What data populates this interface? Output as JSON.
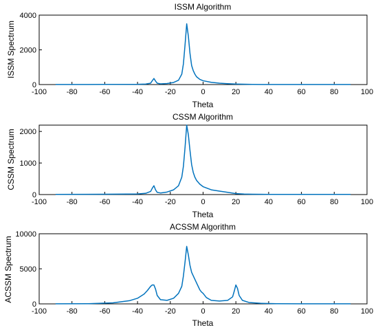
{
  "colors": {
    "series": "#0072BD",
    "axis": "#000000"
  },
  "chart_data": [
    {
      "type": "line",
      "title": "ISSM Algorithm",
      "xlabel": "Theta",
      "ylabel": "ISSM Spectrum",
      "xlim": [
        -100,
        100
      ],
      "ylim": [
        0,
        4000
      ],
      "xticks": [
        -100,
        -80,
        -60,
        -40,
        -20,
        0,
        20,
        40,
        60,
        80,
        100
      ],
      "yticks": [
        0,
        2000,
        4000
      ],
      "grid": false,
      "series": [
        {
          "x": [
            -90,
            -60,
            -40,
            -35,
            -32,
            -31,
            -30,
            -29,
            -28,
            -26,
            -22,
            -18,
            -15,
            -13,
            -12,
            -11,
            -10,
            -9,
            -8,
            -7,
            -6,
            -5,
            -4,
            -2,
            0,
            5,
            10,
            15,
            20,
            25,
            30,
            40,
            60,
            90
          ],
          "y": [
            5,
            8,
            15,
            30,
            80,
            220,
            350,
            200,
            80,
            40,
            60,
            120,
            250,
            600,
            1200,
            2300,
            3500,
            2800,
            1800,
            1100,
            800,
            600,
            450,
            300,
            220,
            130,
            80,
            50,
            30,
            20,
            10,
            5,
            5,
            5
          ]
        }
      ]
    },
    {
      "type": "line",
      "title": "CSSM Algorithm",
      "xlabel": "Theta",
      "ylabel": "CSSM Spectrum",
      "xlim": [
        -100,
        100
      ],
      "ylim": [
        0,
        2200
      ],
      "xticks": [
        -100,
        -80,
        -60,
        -40,
        -20,
        0,
        20,
        40,
        60,
        80,
        100
      ],
      "yticks": [
        0,
        1000,
        2000
      ],
      "grid": false,
      "series": [
        {
          "x": [
            -90,
            -60,
            -40,
            -35,
            -32,
            -31,
            -30,
            -29,
            -28,
            -26,
            -22,
            -18,
            -15,
            -13,
            -12,
            -11,
            -10,
            -9,
            -8,
            -7,
            -6,
            -5,
            -4,
            -2,
            0,
            5,
            10,
            15,
            20,
            25,
            30,
            40,
            60,
            90
          ],
          "y": [
            5,
            10,
            20,
            40,
            100,
            200,
            280,
            150,
            70,
            50,
            80,
            150,
            280,
            550,
            900,
            1500,
            2200,
            1900,
            1400,
            950,
            700,
            550,
            450,
            330,
            250,
            150,
            110,
            70,
            30,
            15,
            10,
            5,
            5,
            5
          ]
        }
      ]
    },
    {
      "type": "line",
      "title": "ACSSM Algorithm",
      "xlabel": "Theta",
      "ylabel": "ACSSM Spectrum",
      "xlim": [
        -100,
        100
      ],
      "ylim": [
        0,
        10000
      ],
      "xticks": [
        -100,
        -80,
        -60,
        -40,
        -20,
        0,
        20,
        40,
        60,
        80,
        100
      ],
      "yticks": [
        0,
        5000,
        10000
      ],
      "grid": false,
      "series": [
        {
          "x": [
            -90,
            -70,
            -55,
            -45,
            -40,
            -36,
            -34,
            -32,
            -31,
            -30,
            -29,
            -28,
            -26,
            -22,
            -18,
            -15,
            -13,
            -12,
            -11,
            -10,
            -9,
            -8,
            -7,
            -6,
            -5,
            -4,
            -3,
            -2,
            -1,
            0,
            2,
            5,
            10,
            15,
            18,
            19,
            20,
            21,
            22,
            24,
            28,
            35,
            45,
            60,
            90
          ],
          "y": [
            10,
            30,
            150,
            450,
            800,
            1400,
            1900,
            2500,
            2700,
            2700,
            2100,
            1200,
            600,
            500,
            800,
            1500,
            2500,
            4000,
            6000,
            8200,
            7000,
            5500,
            4500,
            4000,
            3500,
            3000,
            2500,
            2000,
            1700,
            1500,
            900,
            500,
            400,
            500,
            1000,
            1800,
            2700,
            2200,
            1200,
            500,
            200,
            80,
            30,
            15,
            10
          ]
        }
      ]
    }
  ]
}
